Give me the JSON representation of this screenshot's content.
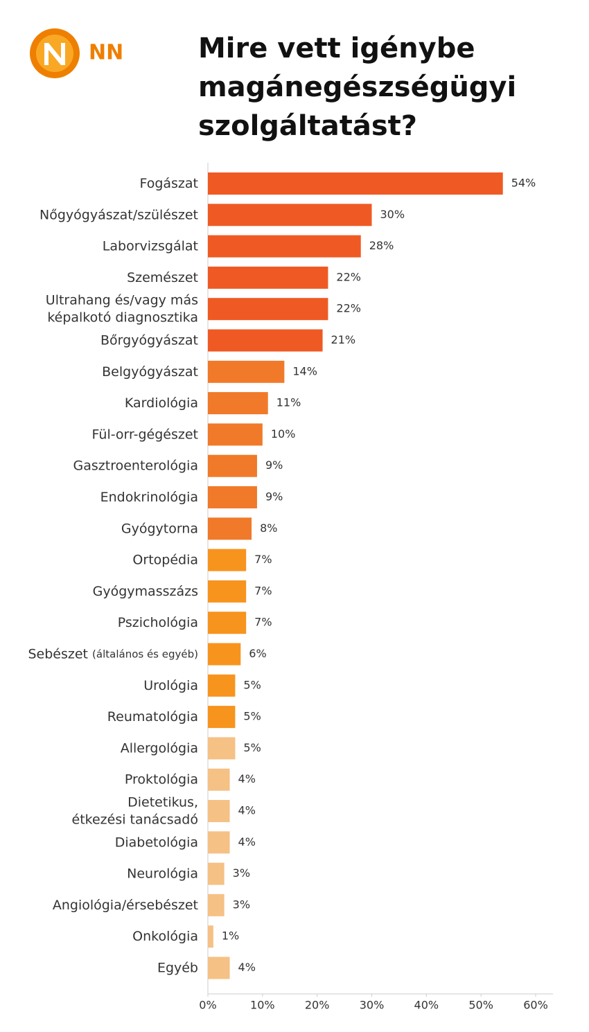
{
  "logo": "NN",
  "chart_data": {
    "type": "bar",
    "orientation": "horizontal",
    "title": "Mire vett igénybe\nmagánegészségügyi\nszolgáltatást?",
    "categories": [
      "Fogászat",
      "Nőgyógyászat/szülészet",
      "Laborvizsgálat",
      "Szemészet",
      "Ultrahang és/vagy más\nképalkotó diagnosztika",
      "Bőrgyógyászat",
      "Belgyógyászat",
      "Kardiológia",
      "Fül-orr-gégészet",
      "Gasztroenterológia",
      "Endokrinológia",
      "Gyógytorna",
      "Ortopédia",
      "Gyógymasszázs",
      "Pszichológia",
      "Sebészet (általános és egyéb)",
      "Urológia",
      "Reumatológia",
      "Allergológia",
      "Proktológia",
      "Dietetikus,\nétkezési tanácsadó",
      "Diabetológia",
      "Neurológia",
      "Angiológia/érsebészet",
      "Onkológia",
      "Egyéb"
    ],
    "values": [
      54,
      30,
      28,
      22,
      22,
      21,
      14,
      11,
      10,
      9,
      9,
      8,
      7,
      7,
      7,
      6,
      5,
      5,
      5,
      4,
      4,
      4,
      3,
      3,
      1,
      4
    ],
    "value_labels": [
      "54%",
      "30%",
      "28%",
      "22%",
      "22%",
      "21%",
      "14%",
      "11%",
      "10%",
      "9%",
      "9%",
      "8%",
      "7%",
      "7%",
      "7%",
      "6%",
      "5%",
      "5%",
      "5%",
      "4%",
      "4%",
      "4%",
      "3%",
      "3%",
      "1%",
      "4%"
    ],
    "colors": [
      "#ef5a24",
      "#ef5a24",
      "#ef5a24",
      "#ef5a24",
      "#ef5a24",
      "#ef5a24",
      "#f07a2a",
      "#f07a2a",
      "#f07a2a",
      "#f07a2a",
      "#f07a2a",
      "#f07a2a",
      "#f7941e",
      "#f7941e",
      "#f7941e",
      "#f7941e",
      "#f7941e",
      "#f7941e",
      "#f5c185",
      "#f5c185",
      "#f5c185",
      "#f5c185",
      "#f5c185",
      "#f5c185",
      "#f5c185",
      "#f5c185"
    ],
    "xlim": [
      0,
      60
    ],
    "xticks": [
      {
        "value": 0,
        "label": "0%"
      },
      {
        "value": 10,
        "label": "10%"
      },
      {
        "value": 20,
        "label": "20%"
      },
      {
        "value": 30,
        "label": "30%"
      },
      {
        "value": 40,
        "label": "40%"
      },
      {
        "value": 50,
        "label": "50%"
      },
      {
        "value": 60,
        "label": "60%"
      }
    ]
  }
}
